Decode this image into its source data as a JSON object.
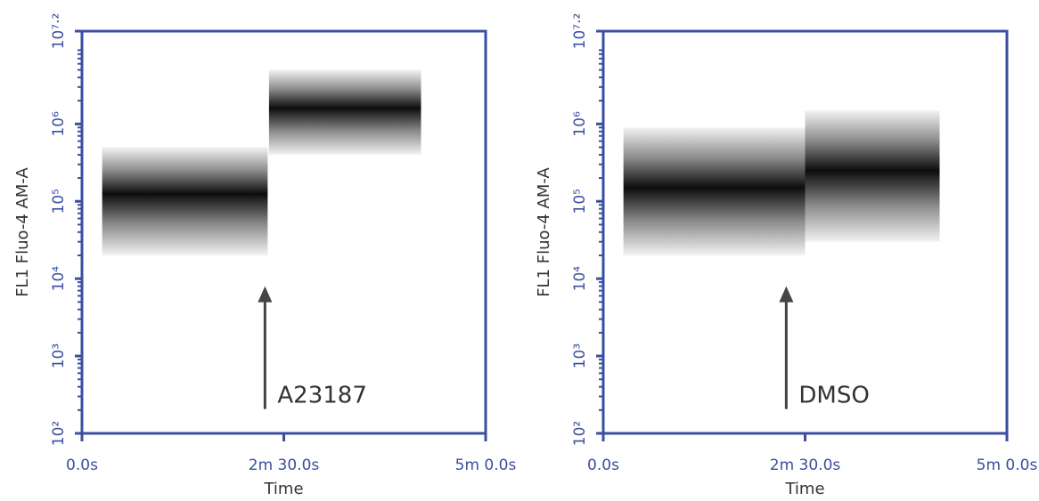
{
  "chart_data": [
    {
      "type": "density",
      "xlabel": "Time",
      "ylabel": "FL1 Fluo-4 AM-A",
      "xlim": [
        0,
        300
      ],
      "xticks": [
        {
          "value": 0,
          "label": "0.0s"
        },
        {
          "value": 150,
          "label": "2m 30.0s"
        },
        {
          "value": 300,
          "label": "5m 0.0s"
        }
      ],
      "ylim": [
        100,
        15848932
      ],
      "log_y": true,
      "minor_ticks": true,
      "yticks": [
        {
          "value": 100,
          "label": "10²"
        },
        {
          "value": 1000,
          "label": "10³"
        },
        {
          "value": 10000,
          "label": "10⁴"
        },
        {
          "value": 100000,
          "label": "10⁵"
        },
        {
          "value": 1000000,
          "label": "10⁶"
        },
        {
          "value": 15848932,
          "label": "10⁷·²"
        }
      ],
      "color": "#000000",
      "populations": [
        {
          "x_start": 15,
          "x_end": 138,
          "center": 125000,
          "low": 20000,
          "high": 500000
        },
        {
          "x_start": 139,
          "x_end": 252,
          "center": 1600000,
          "low": 400000,
          "high": 5000000
        }
      ],
      "annotation": {
        "text": "A23187",
        "x": 136,
        "y_from": 400,
        "y_to": 8000
      }
    },
    {
      "type": "density",
      "xlabel": "Time",
      "ylabel": "FL1 Fluo-4 AM-A",
      "xlim": [
        0,
        300
      ],
      "xticks": [
        {
          "value": 0,
          "label": "0.0s"
        },
        {
          "value": 150,
          "label": "2m 30.0s"
        },
        {
          "value": 300,
          "label": "5m 0.0s"
        }
      ],
      "ylim": [
        100,
        15848932
      ],
      "log_y": true,
      "minor_ticks": true,
      "yticks": [
        {
          "value": 100,
          "label": "10²"
        },
        {
          "value": 1000,
          "label": "10³"
        },
        {
          "value": 10000,
          "label": "10⁴"
        },
        {
          "value": 100000,
          "label": "10⁵"
        },
        {
          "value": 1000000,
          "label": "10⁶"
        },
        {
          "value": 15848932,
          "label": "10⁷·²"
        }
      ],
      "color": "#000000",
      "populations": [
        {
          "x_start": 15,
          "x_end": 150,
          "center": 150000,
          "low": 20000,
          "high": 900000
        },
        {
          "x_start": 150,
          "x_end": 250,
          "center": 250000,
          "low": 30000,
          "high": 1500000
        }
      ],
      "annotation": {
        "text": "DMSO",
        "x": 136,
        "y_from": 400,
        "y_to": 8000
      }
    }
  ]
}
